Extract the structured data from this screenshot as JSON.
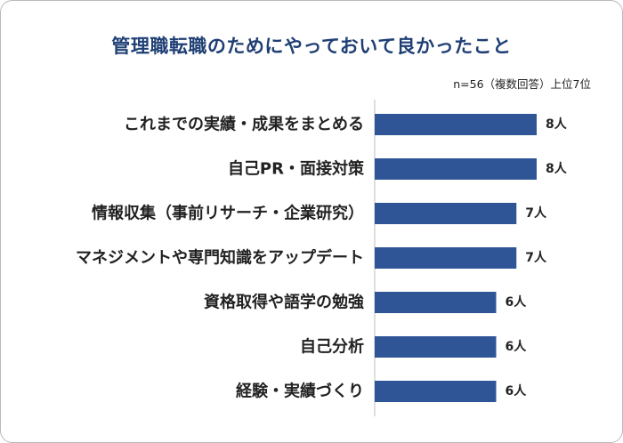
{
  "chart_data": {
    "type": "bar",
    "orientation": "horizontal",
    "title": "管理職転職のためにやっておいて良かったこと",
    "subtitle": "n=56（複数回答）上位7位",
    "categories": [
      "これまでの実績・成果をまとめる",
      "自己PR・面接対策",
      "情報収集（事前リサーチ・企業研究）",
      "マネジメントや専門知識をアップデート",
      "資格取得や語学の勉強",
      "自己分析",
      "経験・実績づくり"
    ],
    "values": [
      8,
      8,
      7,
      7,
      6,
      6,
      6
    ],
    "value_labels": [
      "8人",
      "8人",
      "7人",
      "7人",
      "6人",
      "6人",
      "6人"
    ],
    "xlim": [
      0,
      8
    ],
    "bar_color": "#2f5597",
    "grid": false,
    "legend": "none"
  }
}
